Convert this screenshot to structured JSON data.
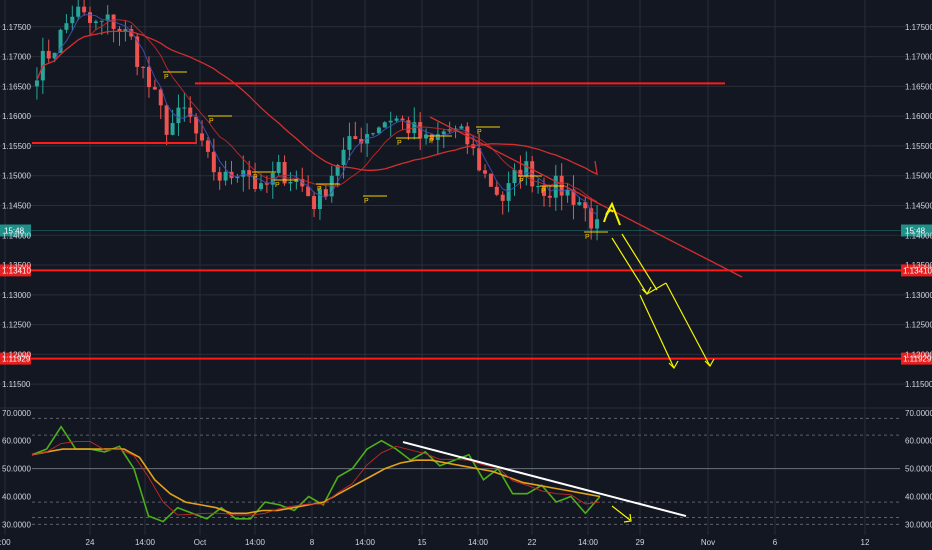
{
  "colors": {
    "background": "#131722",
    "grid": "#2a2e39",
    "axis_text": "#d1d4dc",
    "candle_up": "#26a69a",
    "candle_down": "#ef5350",
    "level_line": "#ff1a1a",
    "ma_fast": "#3f51b5",
    "ma_mid": "#c62828",
    "ma_slow": "#d32f2f",
    "projection": "#f5f500",
    "rsi_line": "#4caf19",
    "rsi_signal": "#c62828",
    "rsi_ma": "#e3a21a",
    "trendline_white": "#ffffff",
    "price_badge": "#1f8f8a",
    "level_badge": "#e91e1e",
    "signal_marker": "#f5d000"
  },
  "chart_data": [
    {
      "type": "candlestick",
      "pane": "price",
      "y_axis_ticks": [
        "1.17500",
        "1.17000",
        "1.16500",
        "1.16000",
        "1.15500",
        "1.15000",
        "1.14500",
        "1.14000",
        "1.13500",
        "1.13000",
        "1.12500",
        "1.12000",
        "1.11500"
      ],
      "x_axis_ticks": [
        ":00",
        "24",
        "14:00",
        "Oct",
        "14:00",
        "8",
        "14:00",
        "15",
        "14:00",
        "22",
        "14:00",
        "29",
        "Nov",
        "6",
        "12"
      ],
      "ylim": [
        1.1115,
        1.1795
      ],
      "approx_close_path": [
        1.168,
        1.172,
        1.178,
        1.175,
        1.176,
        1.173,
        1.165,
        1.158,
        1.161,
        1.153,
        1.149,
        1.152,
        1.147,
        1.151,
        1.149,
        1.145,
        1.152,
        1.156,
        1.158,
        1.16,
        1.158,
        1.155,
        1.158,
        1.156,
        1.15,
        1.146,
        1.152,
        1.148,
        1.148,
        1.146,
        1.141
      ],
      "current_price_label": "15:48",
      "current_price": 1.1408,
      "horizontal_levels": [
        {
          "value": 1.1341,
          "label": "1.13410"
        },
        {
          "value": 1.11929,
          "label": "1.11929"
        },
        {
          "value": 1.1655,
          "label": ""
        },
        {
          "value": 1.1555,
          "label": ""
        }
      ],
      "moving_averages": [
        "ma_fast",
        "ma_mid",
        "ma_slow"
      ],
      "signal_marker_text": "P",
      "annotations": "downward trendline from price high; yellow zigzag projection arrows toward 1.13410 and 1.11929"
    },
    {
      "type": "line",
      "pane": "oscillator",
      "y_axis_ticks": [
        "70.0000",
        "60.0000",
        "50.0000",
        "40.0000",
        "30.0000"
      ],
      "ylim": [
        28,
        71
      ],
      "reference_levels": [
        30,
        32.5,
        38,
        50,
        62,
        68
      ],
      "series": [
        {
          "values": [
            55,
            57,
            65,
            57,
            57,
            56,
            58,
            50,
            33,
            31,
            36,
            34,
            32,
            36,
            32,
            32,
            38,
            37,
            35,
            40,
            37,
            47,
            50,
            57,
            60,
            57,
            53,
            56,
            51,
            53,
            55,
            46,
            50,
            41,
            41,
            44,
            38,
            40,
            34,
            40
          ]
        },
        {
          "values": [
            55,
            56,
            57,
            57,
            57,
            57,
            57,
            54,
            46,
            41,
            38,
            37,
            36,
            34,
            34,
            35,
            35,
            36,
            37,
            38,
            41,
            44,
            47,
            50,
            52,
            53,
            53,
            52,
            51,
            50,
            49,
            47,
            45,
            44,
            43,
            42,
            41,
            40
          ]
        }
      ],
      "annotations": "white descending trendline over oscillator peaks; yellow arrow pointing down-right"
    }
  ]
}
